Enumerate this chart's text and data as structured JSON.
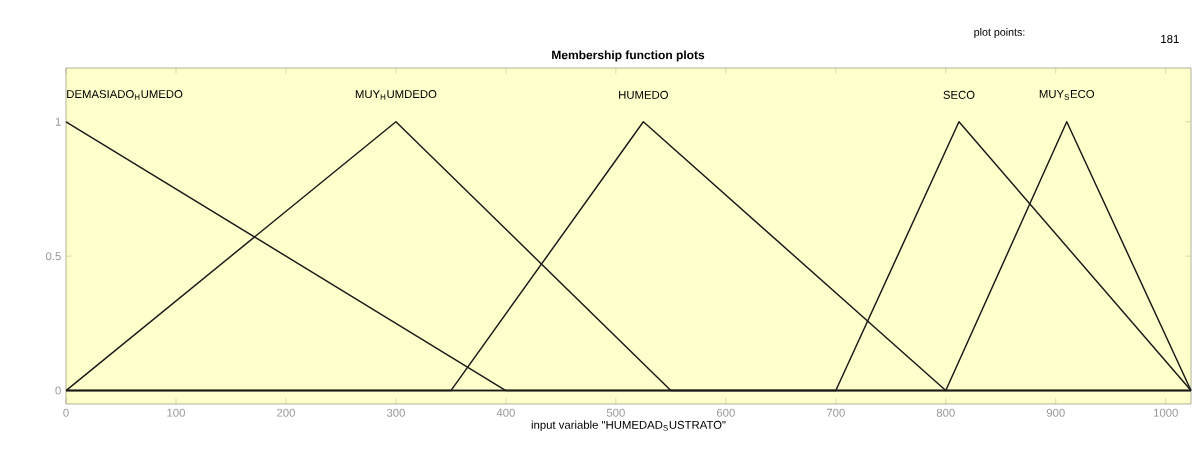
{
  "chart_data": {
    "type": "line",
    "title": "Membership function plots",
    "xlabel": "input variable \"HUMEDAD$_{S}$USTRATO\"",
    "annotations": [
      "plot points:",
      "181"
    ],
    "xlim": [
      0,
      1023
    ],
    "ylim": [
      -0.05,
      1.2
    ],
    "xticks": [
      0,
      100,
      200,
      300,
      400,
      500,
      600,
      700,
      800,
      900,
      1000
    ],
    "yticks": [
      0,
      0.5,
      1
    ],
    "grid": false,
    "legend": false,
    "marker": "none",
    "line_style": "solid",
    "series": [
      {
        "name": "DEMASIADO$_{H}$UMEDO",
        "color": "#1a1a1a",
        "x": [
          0,
          400,
          1023
        ],
        "values": [
          1,
          0,
          0
        ]
      },
      {
        "name": "MUY$_{H}$UMDEDO",
        "color": "#1a1a1a",
        "x": [
          0,
          300,
          550,
          1023
        ],
        "values": [
          0,
          1,
          0,
          0
        ]
      },
      {
        "name": "HUMEDO",
        "color": "#1a1a1a",
        "x": [
          0,
          350,
          525,
          800,
          1023
        ],
        "values": [
          0,
          0,
          1,
          0,
          0
        ]
      },
      {
        "name": "SECO",
        "color": "#1a1a1a",
        "x": [
          0,
          700,
          812,
          1023
        ],
        "values": [
          0,
          0,
          1,
          0
        ]
      },
      {
        "name": "MUY$_{S}$ECO",
        "color": "#1a1a1a",
        "x": [
          0,
          800,
          910,
          1023
        ],
        "values": [
          0,
          0,
          1,
          0
        ]
      }
    ]
  }
}
